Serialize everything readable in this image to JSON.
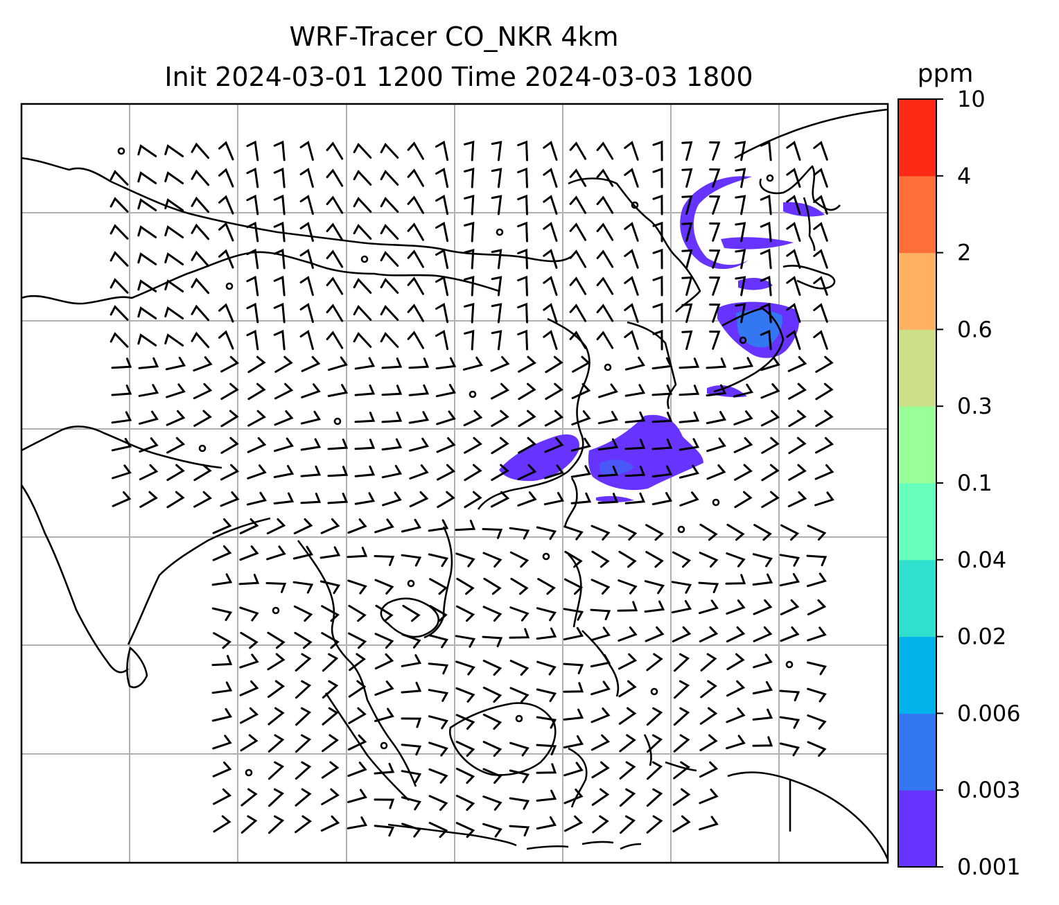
{
  "title": {
    "line1": "WRF-Tracer CO_NKR 4km",
    "line2": "Init 2024-03-01 1200 Time 2024-03-03 1800"
  },
  "colorbar": {
    "unit": "ppm",
    "ticks": [
      "0.001",
      "0.003",
      "0.006",
      "0.02",
      "0.04",
      "0.1",
      "0.3",
      "0.6",
      "2",
      "4",
      "10"
    ],
    "colors": [
      "#6633ff",
      "#3377f2",
      "#00b3ea",
      "#2fe0cf",
      "#66ffbb",
      "#99ff99",
      "#cce088",
      "#ffb060",
      "#ff7038",
      "#ff2a16"
    ]
  },
  "map": {
    "frame_color": "#000000",
    "gridline_color": "#b0b0b0",
    "coastline_color": "#000000",
    "wind_barb_color": "#000000",
    "tracer_color_low": "#6633ff",
    "tracer_color_high": "#3377f2"
  }
}
